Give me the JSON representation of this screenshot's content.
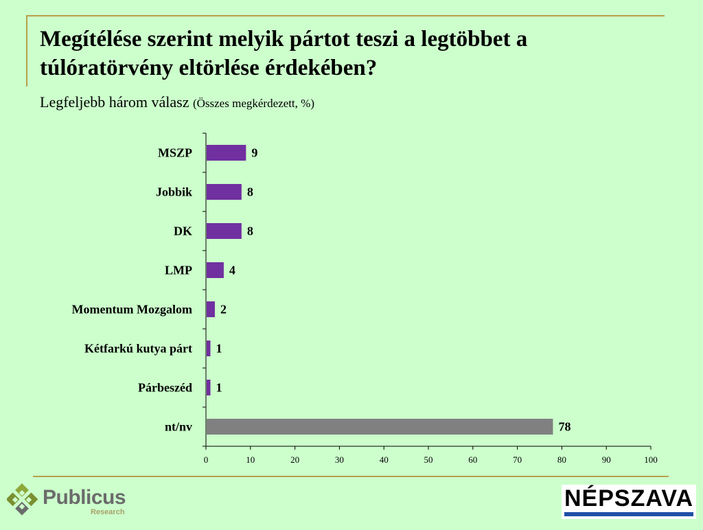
{
  "title": "Megítélése szerint melyik pártot teszi a legtöbbet a túlóratörvény eltörlése érdekében?",
  "subtitle": "Legfeljebb három válasz",
  "subtitle_note": "(Összes megkérdezett, %)",
  "logos": {
    "publicus_main": "Publicus",
    "publicus_sub": "Research",
    "nepszava": "NÉPSZAVA"
  },
  "colors": {
    "background": "#ccffcc",
    "bar_party": "#7030a0",
    "bar_other": "#808080",
    "rule": "#b8a04a"
  },
  "chart_data": {
    "type": "bar",
    "orientation": "horizontal",
    "categories": [
      "MSZP",
      "Jobbik",
      "DK",
      "LMP",
      "Momentum Mozgalom",
      "Kétfarkú kutya párt",
      "Párbeszéd",
      "nt/nv"
    ],
    "values": [
      9,
      8,
      8,
      4,
      2,
      1,
      1,
      78
    ],
    "bar_colors": [
      "#7030a0",
      "#7030a0",
      "#7030a0",
      "#7030a0",
      "#7030a0",
      "#7030a0",
      "#7030a0",
      "#808080"
    ],
    "xlim": [
      0,
      100
    ],
    "xticks": [
      0,
      10,
      20,
      30,
      40,
      50,
      60,
      70,
      80,
      90,
      100
    ],
    "grid": false,
    "legend": "none"
  }
}
